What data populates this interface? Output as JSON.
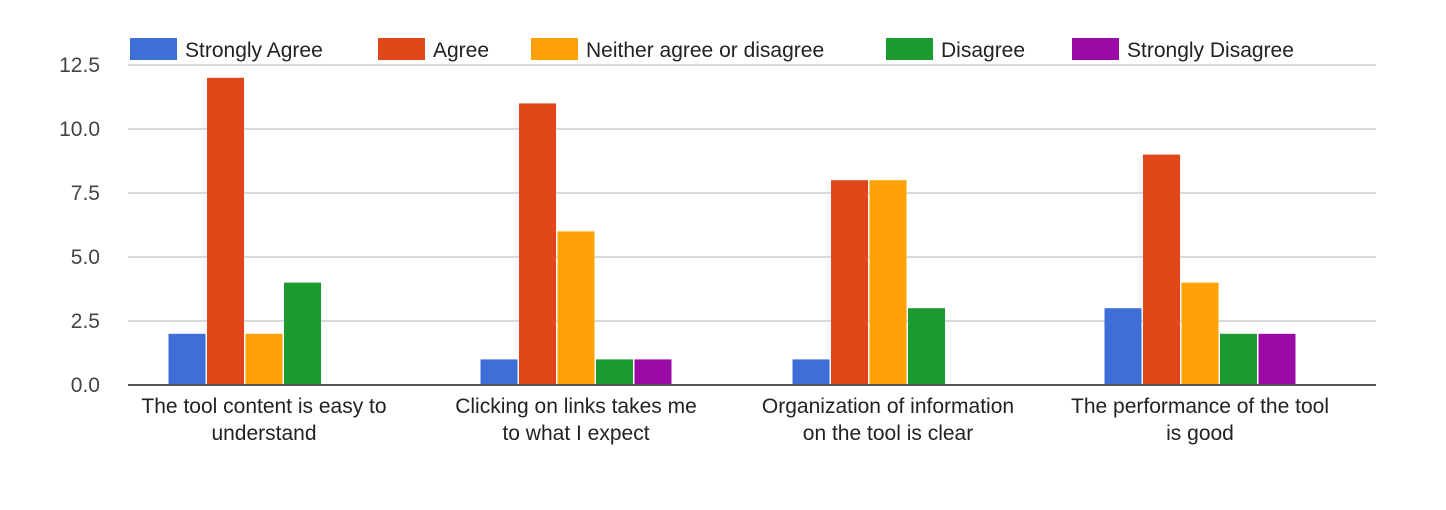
{
  "chart_data": {
    "type": "bar",
    "title": "",
    "xlabel": "",
    "ylabel": "",
    "ylim": [
      0,
      12.5
    ],
    "yticks": [
      0,
      2.5,
      5,
      7.5,
      10,
      12.5
    ],
    "ytick_labels": [
      "0.0",
      "2.5",
      "5.0",
      "7.5",
      "10.0",
      "12.5"
    ],
    "grid": true,
    "legend_position": "top",
    "categories": [
      [
        "The tool content is easy to",
        "understand"
      ],
      [
        "Clicking on links takes me",
        "to what I expect"
      ],
      [
        "Organization of information",
        "on the tool is clear"
      ],
      [
        "The performance of the tool",
        "is good"
      ]
    ],
    "series": [
      {
        "name": "Strongly Agree",
        "color": "#3e6fd6",
        "values": [
          2,
          1,
          1,
          3
        ]
      },
      {
        "name": "Agree",
        "color": "#e0481a",
        "values": [
          12,
          11,
          8,
          9
        ]
      },
      {
        "name": "Neither agree or disagree",
        "color": "#fda106",
        "values": [
          2,
          6,
          8,
          4
        ]
      },
      {
        "name": "Disagree",
        "color": "#1b9a2f",
        "values": [
          4,
          1,
          3,
          2
        ]
      },
      {
        "name": "Strongly Disagree",
        "color": "#9a0aa5",
        "values": [
          0,
          1,
          0,
          2
        ]
      }
    ]
  }
}
